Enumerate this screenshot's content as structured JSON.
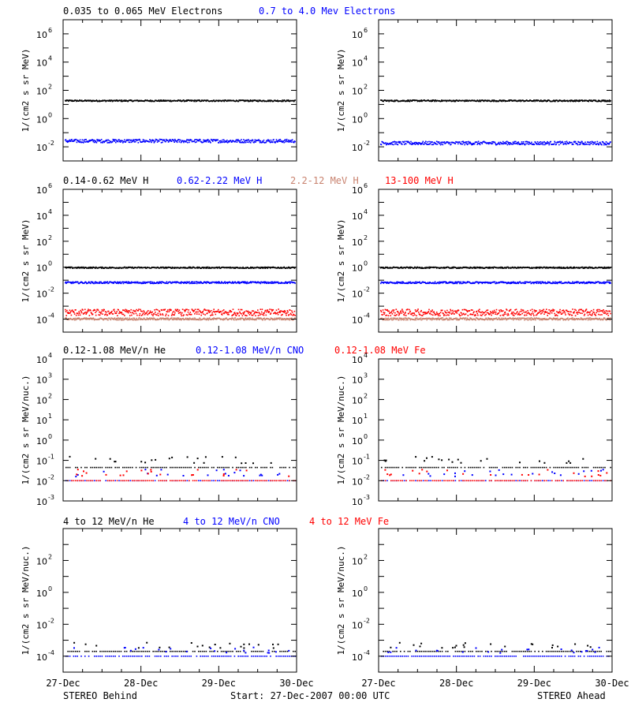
{
  "footer": {
    "left": "STEREO Behind",
    "center": "Start: 27-Dec-2007 00:00 UTC",
    "right": "STEREO Ahead"
  },
  "x_ticks": [
    "27-Dec",
    "28-Dec",
    "29-Dec",
    "30-Dec"
  ],
  "colors": {
    "black": "#000000",
    "blue": "#0000ff",
    "tan": "#c8826e",
    "red": "#ff0000"
  },
  "chart_data": [
    {
      "type": "scatter",
      "row": 0,
      "legend": [
        {
          "text": "0.035 to 0.065 MeV Electrons",
          "color": "#000000"
        },
        {
          "text": "0.7 to 4.0 Mev Electrons",
          "color": "#0000ff"
        }
      ],
      "ylabel": "1/(cm2 s sr MeV)",
      "y_log_range": [
        -3,
        7
      ],
      "y_tick_exponents": [
        -2,
        0,
        2,
        4,
        6
      ],
      "xlim": [
        "27-Dec-2007",
        "30-Dec-2007"
      ],
      "series": [
        {
          "color": "#000000",
          "log_level_behind": 1.25,
          "log_level_ahead": 1.25,
          "spread": 0.05
        },
        {
          "color": "#0000ff",
          "log_level_behind": -1.6,
          "log_level_ahead": -1.75,
          "spread": 0.12
        }
      ]
    },
    {
      "type": "scatter",
      "row": 1,
      "legend": [
        {
          "text": "0.14-0.62 MeV H",
          "color": "#000000"
        },
        {
          "text": "0.62-2.22 MeV H",
          "color": "#0000ff"
        },
        {
          "text": "2.2-12 MeV H",
          "color": "#c8826e"
        },
        {
          "text": "13-100 MeV H",
          "color": "#ff0000"
        }
      ],
      "ylabel": "1/(cm2 s sr MeV)",
      "y_log_range": [
        -5,
        6
      ],
      "y_tick_exponents": [
        -4,
        -2,
        0,
        2,
        4,
        6
      ],
      "xlim": [
        "27-Dec-2007",
        "30-Dec-2007"
      ],
      "series": [
        {
          "color": "#000000",
          "log_level_behind": -0.05,
          "log_level_ahead": -0.05,
          "spread": 0.05
        },
        {
          "color": "#0000ff",
          "log_level_behind": -1.2,
          "log_level_ahead": -1.2,
          "spread": 0.07
        },
        {
          "color": "#ff0000",
          "log_level_behind": -3.5,
          "log_level_ahead": -3.5,
          "spread": 0.25
        },
        {
          "color": "#c8826e",
          "log_level_behind": -4.0,
          "log_level_ahead": -4.0,
          "spread": 0.08
        }
      ]
    },
    {
      "type": "scatter",
      "row": 2,
      "legend": [
        {
          "text": "0.12-1.08 MeV/n He",
          "color": "#000000"
        },
        {
          "text": "0.12-1.08 MeV/n CNO",
          "color": "#0000ff"
        },
        {
          "text": "0.12-1.08 MeV Fe",
          "color": "#ff0000"
        }
      ],
      "ylabel": "1/(cm2 s sr MeV/nuc.)",
      "y_log_range": [
        -3,
        4
      ],
      "y_tick_exponents": [
        -3,
        -2,
        -1,
        0,
        1,
        2,
        3,
        4
      ],
      "xlim": [
        "27-Dec-2007",
        "30-Dec-2007"
      ],
      "series": [
        {
          "color": "#000000",
          "log_level_behind": -1.35,
          "log_level_ahead": -1.35,
          "spread": 0.0
        },
        {
          "color": "#0000ff",
          "log_level_behind": -2.0,
          "log_level_ahead": -2.0,
          "spread": 0.0
        },
        {
          "color": "#ff0000",
          "log_level_behind": -2.0,
          "log_level_ahead": -2.0,
          "spread": 0.0
        }
      ]
    },
    {
      "type": "scatter",
      "row": 3,
      "legend": [
        {
          "text": "4 to 12 MeV/n He",
          "color": "#000000"
        },
        {
          "text": "4 to 12 MeV/n CNO",
          "color": "#0000ff"
        },
        {
          "text": "4 to 12 MeV Fe",
          "color": "#ff0000"
        }
      ],
      "ylabel": "1/(cm2 s sr MeV/nuc.)",
      "y_log_range": [
        -5,
        4
      ],
      "y_tick_exponents": [
        -4,
        -2,
        0,
        2
      ],
      "xlim": [
        "27-Dec-2007",
        "30-Dec-2007"
      ],
      "series": [
        {
          "color": "#000000",
          "log_level_behind": -3.7,
          "log_level_ahead": -3.7,
          "spread": 0.0
        },
        {
          "color": "#0000ff",
          "log_level_behind": -4.0,
          "log_level_ahead": -4.0,
          "spread": 0.0
        }
      ]
    }
  ]
}
